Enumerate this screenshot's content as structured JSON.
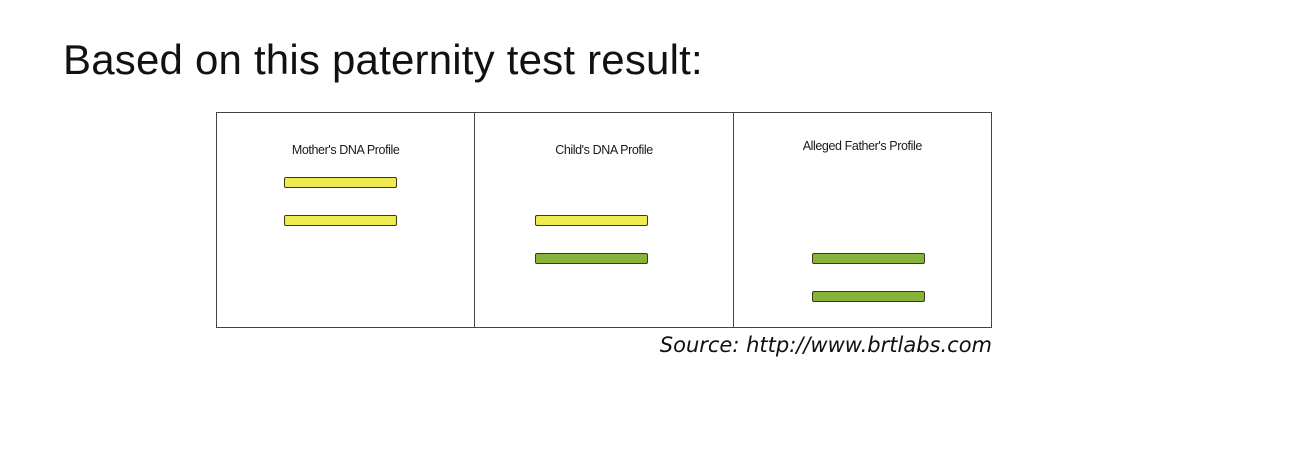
{
  "title": "Based on this paternity test result:",
  "panels": [
    {
      "label": "Mother's DNA Profile",
      "bands": [
        {
          "color_name": "yellow",
          "color": "#EDEB4F"
        },
        {
          "color_name": "yellow",
          "color": "#EDEB4F"
        }
      ]
    },
    {
      "label": "Child's DNA Profile",
      "bands": [
        {
          "color_name": "yellow",
          "color": "#EDEB4F"
        },
        {
          "color_name": "green",
          "color": "#86B43B"
        }
      ]
    },
    {
      "label": "Alleged Father's Profile",
      "bands": [
        {
          "color_name": "green",
          "color": "#86B43B"
        },
        {
          "color_name": "green",
          "color": "#86B43B"
        }
      ]
    }
  ],
  "source": "Source: http://www.brtlabs.com"
}
